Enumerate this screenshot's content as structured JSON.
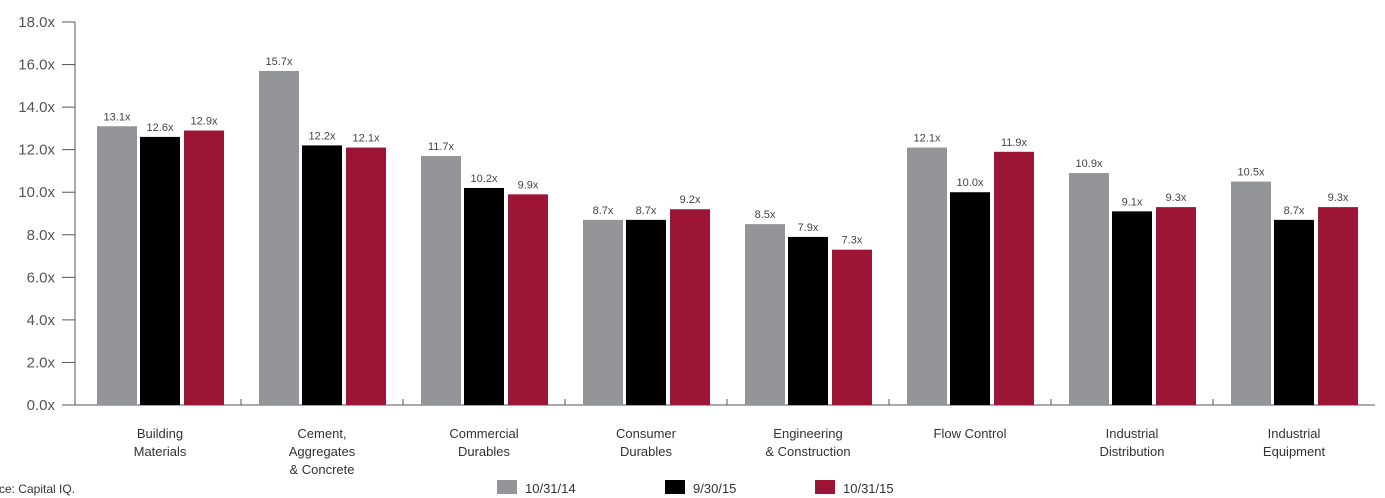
{
  "chart_data": {
    "type": "bar",
    "categories": [
      "Building\nMaterials",
      "Cement,\nAggregates\n& Concrete",
      "Commercial\nDurables",
      "Consumer\nDurables",
      "Engineering\n& Construction",
      "Flow Control",
      "Industrial\nDistribution",
      "Industrial\nEquipment"
    ],
    "series": [
      {
        "name": "10/31/14",
        "color": "#939598",
        "values": [
          13.1,
          15.7,
          11.7,
          8.7,
          8.5,
          12.1,
          10.9,
          10.5
        ],
        "value_labels": [
          "13.1x",
          "15.7x",
          "11.7x",
          "8.7x",
          "8.5x",
          "12.1x",
          "10.9x",
          "10.5x"
        ]
      },
      {
        "name": "9/30/15",
        "color": "#000000",
        "values": [
          12.6,
          12.2,
          10.2,
          8.7,
          7.9,
          10.0,
          9.1,
          8.7
        ],
        "value_labels": [
          "12.6x",
          "12.2x",
          "10.2x",
          "8.7x",
          "7.9x",
          "10.0x",
          "9.1x",
          "8.7x"
        ]
      },
      {
        "name": "10/31/15",
        "color": "#9d1535",
        "values": [
          12.9,
          12.1,
          9.9,
          9.2,
          7.3,
          11.9,
          9.3,
          9.3
        ],
        "value_labels": [
          "12.9x",
          "12.1x",
          "9.9x",
          "9.2x",
          "7.3x",
          "11.9x",
          "9.3x",
          "9.3x"
        ]
      }
    ],
    "ylim": [
      0,
      18
    ],
    "yticks": [
      {
        "value": 0,
        "label": "0.0x"
      },
      {
        "value": 2,
        "label": "2.0x"
      },
      {
        "value": 4,
        "label": "4.0x"
      },
      {
        "value": 6,
        "label": "6.0x"
      },
      {
        "value": 8,
        "label": "8.0x"
      },
      {
        "value": 10,
        "label": "10.0x"
      },
      {
        "value": 12,
        "label": "12.0x"
      },
      {
        "value": 14,
        "label": "14.0x"
      },
      {
        "value": 16,
        "label": "16.0x"
      },
      {
        "value": 18,
        "label": "18.0x"
      }
    ],
    "source": "Source: Capital IQ.",
    "legend": "bottom"
  }
}
